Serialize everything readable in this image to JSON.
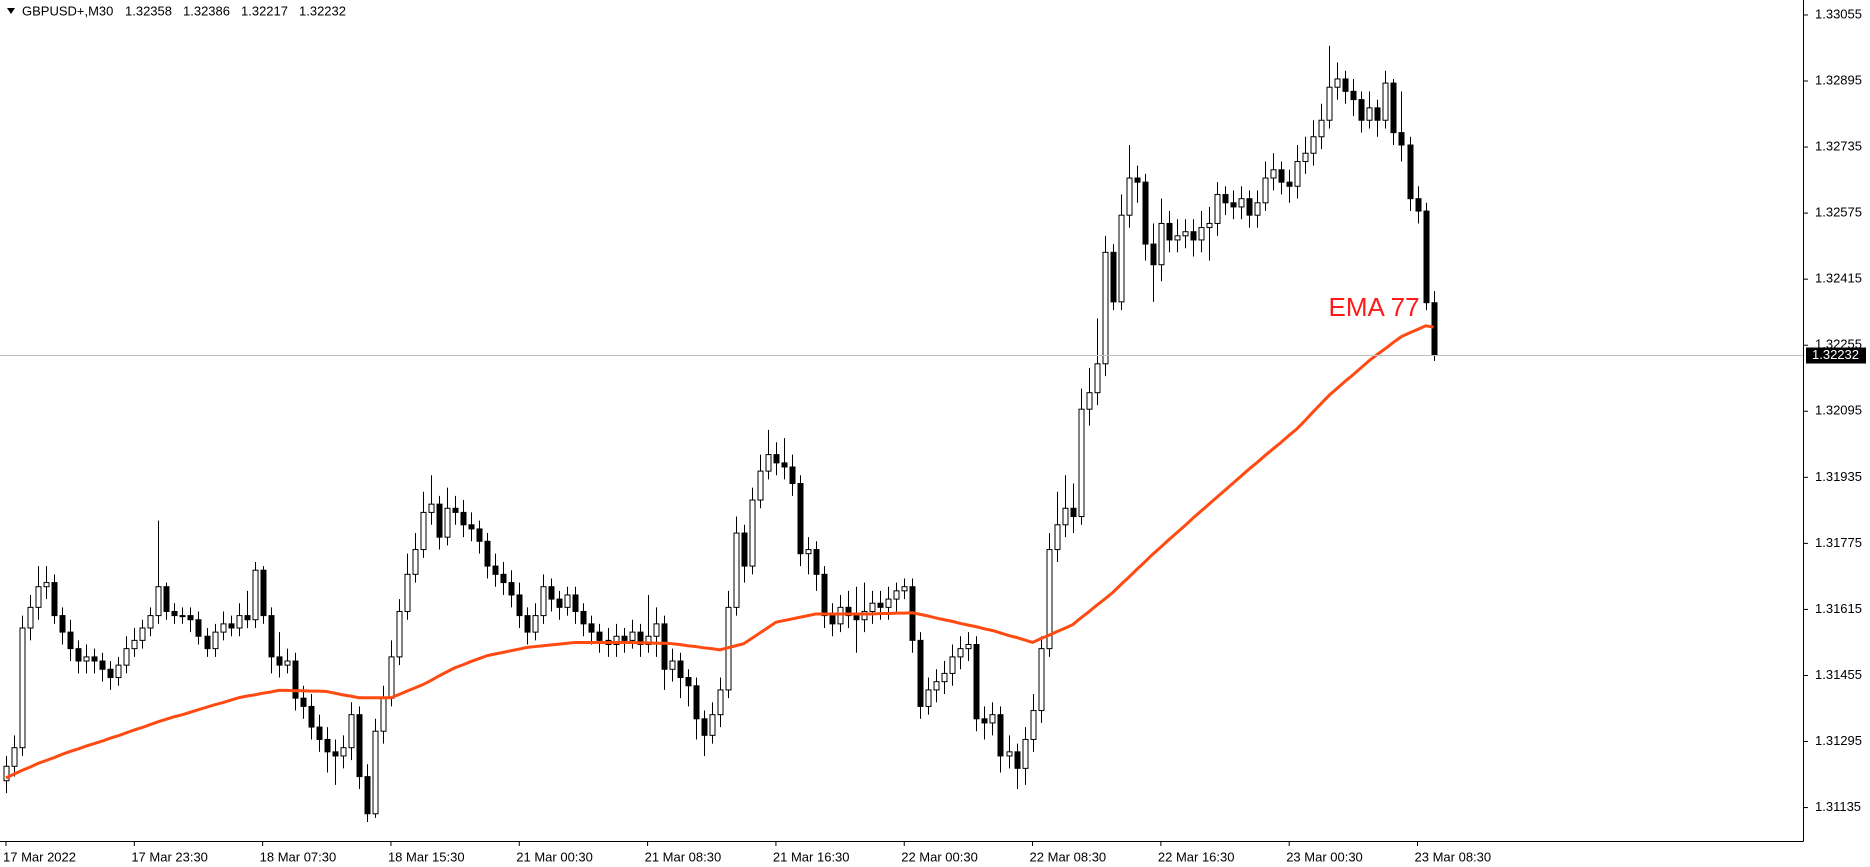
{
  "chart_data": {
    "type": "candlestick",
    "title": "GBPUSD+,M30",
    "categories": [
      "17 Mar 2022",
      null,
      null,
      null,
      null,
      null,
      null,
      null,
      null,
      null,
      null,
      null,
      null,
      null,
      null,
      null,
      "17 Mar 23:30",
      null,
      null,
      null,
      null,
      null,
      null,
      null,
      null,
      null,
      null,
      null,
      null,
      null,
      null,
      null,
      "18 Mar 07:30",
      null,
      null,
      null,
      null,
      null,
      null,
      null,
      null,
      null,
      null,
      null,
      null,
      null,
      null,
      null,
      "18 Mar 15:30",
      null,
      null,
      null,
      null,
      null,
      null,
      null,
      null,
      null,
      null,
      null,
      null,
      null,
      null,
      null,
      "21 Mar 00:30",
      null,
      null,
      null,
      null,
      null,
      null,
      null,
      null,
      null,
      null,
      null,
      null,
      null,
      null,
      null,
      "21 Mar 08:30",
      null,
      null,
      null,
      null,
      null,
      null,
      null,
      null,
      null,
      null,
      null,
      null,
      null,
      null,
      null,
      "21 Mar 16:30",
      null,
      null,
      null,
      null,
      null,
      null,
      null,
      null,
      null,
      null,
      null,
      null,
      null,
      null,
      null,
      "22 Mar 00:30",
      null,
      null,
      null,
      null,
      null,
      null,
      null,
      null,
      null,
      null,
      null,
      null,
      null,
      null,
      null,
      "22 Mar 08:30",
      null,
      null,
      null,
      null,
      null,
      null,
      null,
      null,
      null,
      null,
      null,
      null,
      null,
      null,
      null,
      "22 Mar 16:30",
      null,
      null,
      null,
      null,
      null,
      null,
      null,
      null,
      null,
      null,
      null,
      null,
      null,
      null,
      null,
      "23 Mar 00:30",
      null,
      null,
      null,
      null,
      null,
      null,
      null,
      null,
      null,
      null,
      null,
      null,
      null,
      null,
      null,
      "23 Mar 08:30",
      null,
      null
    ],
    "ohlc": {
      "open": [
        1.312,
        1.31235,
        1.3128,
        1.3157,
        1.3162,
        1.3167,
        1.3168,
        1.316,
        1.3156,
        1.3152,
        1.3149,
        1.315,
        1.3149,
        1.3147,
        1.3145,
        1.3148,
        1.3152,
        1.3154,
        1.3157,
        1.316,
        1.3167,
        1.3161,
        1.316,
        1.316,
        1.3159,
        1.3155,
        1.3152,
        1.3156,
        1.3158,
        1.3157,
        1.316,
        1.3159,
        1.3171,
        1.316,
        1.315,
        1.3148,
        1.3149,
        1.314,
        1.3138,
        1.3133,
        1.313,
        1.3127,
        1.3126,
        1.3128,
        1.3136,
        1.3121,
        1.3112,
        1.3132,
        1.314,
        1.315,
        1.3161,
        1.317,
        1.3176,
        1.3185,
        1.3187,
        1.3179,
        1.3186,
        1.3185,
        1.3182,
        1.3181,
        1.3178,
        1.3172,
        1.317,
        1.3168,
        1.3165,
        1.316,
        1.3156,
        1.316,
        1.3167,
        1.3164,
        1.3162,
        1.3165,
        1.3161,
        1.3158,
        1.3156,
        1.3154,
        1.3153,
        1.3155,
        1.3154,
        1.3156,
        1.3153,
        1.3155,
        1.3158,
        1.3147,
        1.3149,
        1.3145,
        1.3143,
        1.3135,
        1.3131,
        1.3136,
        1.3142,
        1.3162,
        1.318,
        1.3172,
        1.3188,
        1.3195,
        1.3199,
        1.3197,
        1.3196,
        1.3192,
        1.3175,
        1.3176,
        1.317,
        1.316,
        1.3158,
        1.3162,
        1.316,
        1.3159,
        1.3161,
        1.3163,
        1.3162,
        1.3164,
        1.3166,
        1.3167,
        1.3154,
        1.3138,
        1.3142,
        1.3144,
        1.3146,
        1.315,
        1.3152,
        1.3153,
        1.3135,
        1.3134,
        1.3136,
        1.3126,
        1.3127,
        1.3123,
        1.313,
        1.3137,
        1.3152,
        1.3176,
        1.3182,
        1.3186,
        1.3184,
        1.321,
        1.3214,
        1.3221,
        1.3248,
        1.3236,
        1.3257,
        1.3266,
        1.3265,
        1.325,
        1.3245,
        1.3255,
        1.3251,
        1.3252,
        1.3253,
        1.3251,
        1.3254,
        1.3255,
        1.3262,
        1.326,
        1.3259,
        1.3261,
        1.3257,
        1.326,
        1.3266,
        1.3268,
        1.3265,
        1.3264,
        1.327,
        1.3272,
        1.3276,
        1.328,
        1.3288,
        1.329,
        1.3287,
        1.3285,
        1.328,
        1.3283,
        1.328,
        1.3289,
        1.3277,
        1.3274,
        1.3261,
        1.3258,
        1.32358
      ],
      "high": [
        1.3126,
        1.3131,
        1.316,
        1.3165,
        1.3172,
        1.3172,
        1.317,
        1.3162,
        1.3159,
        1.3154,
        1.3153,
        1.3152,
        1.3151,
        1.3149,
        1.315,
        1.3155,
        1.3157,
        1.3159,
        1.3162,
        1.3183,
        1.3168,
        1.3163,
        1.3162,
        1.3162,
        1.3161,
        1.3157,
        1.3158,
        1.3161,
        1.316,
        1.3163,
        1.3166,
        1.3173,
        1.3172,
        1.3162,
        1.3156,
        1.3152,
        1.3151,
        1.3143,
        1.3141,
        1.3136,
        1.3133,
        1.313,
        1.3131,
        1.3139,
        1.3138,
        1.3124,
        1.3135,
        1.3143,
        1.3154,
        1.3164,
        1.3175,
        1.318,
        1.319,
        1.3194,
        1.3189,
        1.3191,
        1.3189,
        1.3188,
        1.3185,
        1.3183,
        1.318,
        1.3175,
        1.3173,
        1.3171,
        1.3168,
        1.3162,
        1.3163,
        1.317,
        1.3169,
        1.3166,
        1.3167,
        1.3167,
        1.3163,
        1.316,
        1.3158,
        1.3157,
        1.3158,
        1.3157,
        1.3159,
        1.3158,
        1.3165,
        1.3162,
        1.316,
        1.3152,
        1.3151,
        1.3147,
        1.3145,
        1.3137,
        1.3139,
        1.3145,
        1.3166,
        1.3184,
        1.3182,
        1.3191,
        1.3199,
        1.3205,
        1.3202,
        1.3203,
        1.3199,
        1.3194,
        1.3179,
        1.3178,
        1.3172,
        1.3163,
        1.3165,
        1.3166,
        1.3167,
        1.3168,
        1.3166,
        1.3166,
        1.3167,
        1.3168,
        1.3169,
        1.3169,
        1.3156,
        1.3145,
        1.3147,
        1.3149,
        1.3153,
        1.3155,
        1.3156,
        1.3155,
        1.3138,
        1.3139,
        1.3138,
        1.3131,
        1.3129,
        1.3133,
        1.3141,
        1.3155,
        1.318,
        1.319,
        1.3194,
        1.3192,
        1.3215,
        1.322,
        1.3232,
        1.3252,
        1.325,
        1.3262,
        1.3274,
        1.3269,
        1.3267,
        1.3255,
        1.3261,
        1.3258,
        1.3256,
        1.3256,
        1.3256,
        1.3258,
        1.3259,
        1.3265,
        1.3264,
        1.3263,
        1.3264,
        1.3263,
        1.3263,
        1.327,
        1.3272,
        1.327,
        1.3268,
        1.3274,
        1.3276,
        1.328,
        1.3284,
        1.3298,
        1.3294,
        1.3292,
        1.329,
        1.3287,
        1.3287,
        1.3285,
        1.3292,
        1.329,
        1.3287,
        1.3276,
        1.3264,
        1.326,
        1.32386
      ],
      "low": [
        1.3117,
        1.3121,
        1.3126,
        1.3154,
        1.3159,
        1.3164,
        1.3158,
        1.3153,
        1.3149,
        1.3146,
        1.3146,
        1.3146,
        1.3144,
        1.3142,
        1.3143,
        1.3146,
        1.315,
        1.3152,
        1.3155,
        1.3158,
        1.3159,
        1.3158,
        1.3158,
        1.3156,
        1.3153,
        1.315,
        1.315,
        1.3154,
        1.3155,
        1.3155,
        1.3157,
        1.3157,
        1.3158,
        1.3146,
        1.3145,
        1.3146,
        1.3137,
        1.3135,
        1.313,
        1.3127,
        1.3122,
        1.3119,
        1.3123,
        1.3125,
        1.3118,
        1.311,
        1.3111,
        1.3129,
        1.3138,
        1.3148,
        1.3159,
        1.3168,
        1.3174,
        1.3182,
        1.3176,
        1.3177,
        1.3182,
        1.3179,
        1.3178,
        1.3175,
        1.3169,
        1.3167,
        1.3165,
        1.3162,
        1.3157,
        1.3153,
        1.3154,
        1.3158,
        1.3161,
        1.3159,
        1.316,
        1.3158,
        1.3155,
        1.3153,
        1.3151,
        1.315,
        1.315,
        1.3151,
        1.3152,
        1.315,
        1.3151,
        1.315,
        1.3142,
        1.3144,
        1.314,
        1.3138,
        1.313,
        1.3126,
        1.3129,
        1.3133,
        1.314,
        1.316,
        1.3168,
        1.317,
        1.3186,
        1.3193,
        1.3194,
        1.3193,
        1.3189,
        1.3172,
        1.317,
        1.3166,
        1.3157,
        1.3155,
        1.3156,
        1.3157,
        1.3151,
        1.3156,
        1.3158,
        1.3159,
        1.3159,
        1.3161,
        1.3164,
        1.3151,
        1.3135,
        1.3136,
        1.3139,
        1.3141,
        1.3143,
        1.3147,
        1.3149,
        1.3132,
        1.313,
        1.3131,
        1.3122,
        1.3123,
        1.3118,
        1.3119,
        1.3127,
        1.3134,
        1.315,
        1.3173,
        1.3179,
        1.318,
        1.3182,
        1.3206,
        1.3211,
        1.3218,
        1.3234,
        1.3234,
        1.3254,
        1.326,
        1.3246,
        1.3236,
        1.3241,
        1.3248,
        1.3248,
        1.3249,
        1.3247,
        1.3248,
        1.3246,
        1.3252,
        1.3257,
        1.3256,
        1.3256,
        1.3254,
        1.3254,
        1.3258,
        1.3263,
        1.3262,
        1.326,
        1.3261,
        1.3267,
        1.3269,
        1.3273,
        1.3278,
        1.3285,
        1.3284,
        1.3281,
        1.3277,
        1.3278,
        1.3276,
        1.3278,
        1.3274,
        1.327,
        1.3258,
        1.3255,
        1.3234,
        1.32217
      ],
      "close": [
        1.31235,
        1.3128,
        1.3157,
        1.3162,
        1.3167,
        1.3168,
        1.316,
        1.3156,
        1.3152,
        1.3149,
        1.315,
        1.3149,
        1.3147,
        1.3145,
        1.3148,
        1.3152,
        1.3154,
        1.3157,
        1.316,
        1.3167,
        1.3161,
        1.316,
        1.316,
        1.3159,
        1.3155,
        1.3152,
        1.3156,
        1.3158,
        1.3157,
        1.316,
        1.3159,
        1.3171,
        1.316,
        1.315,
        1.3148,
        1.3149,
        1.314,
        1.3138,
        1.3133,
        1.313,
        1.3127,
        1.3126,
        1.3128,
        1.3136,
        1.3121,
        1.3112,
        1.3132,
        1.314,
        1.315,
        1.3161,
        1.317,
        1.3176,
        1.3185,
        1.3187,
        1.3179,
        1.3186,
        1.3185,
        1.3182,
        1.3181,
        1.3178,
        1.3172,
        1.317,
        1.3168,
        1.3165,
        1.316,
        1.3156,
        1.316,
        1.3167,
        1.3164,
        1.3162,
        1.3165,
        1.3161,
        1.3158,
        1.3156,
        1.3154,
        1.3153,
        1.3155,
        1.3154,
        1.3156,
        1.3153,
        1.3155,
        1.3158,
        1.3147,
        1.3149,
        1.3145,
        1.3143,
        1.3135,
        1.3131,
        1.3136,
        1.3142,
        1.3162,
        1.318,
        1.3172,
        1.3188,
        1.3195,
        1.3199,
        1.3197,
        1.3196,
        1.3192,
        1.3175,
        1.3176,
        1.317,
        1.316,
        1.3158,
        1.3162,
        1.316,
        1.3159,
        1.3161,
        1.3163,
        1.3162,
        1.3164,
        1.3166,
        1.3167,
        1.3154,
        1.3138,
        1.3142,
        1.3144,
        1.3146,
        1.315,
        1.3152,
        1.3153,
        1.3135,
        1.3134,
        1.3136,
        1.3126,
        1.3127,
        1.3123,
        1.313,
        1.3137,
        1.3152,
        1.3176,
        1.3182,
        1.3186,
        1.3184,
        1.321,
        1.3214,
        1.3221,
        1.3248,
        1.3236,
        1.3257,
        1.3266,
        1.3265,
        1.325,
        1.3245,
        1.3255,
        1.3251,
        1.3252,
        1.3253,
        1.3251,
        1.3254,
        1.3255,
        1.3262,
        1.326,
        1.3259,
        1.3261,
        1.3257,
        1.326,
        1.3266,
        1.3268,
        1.3265,
        1.3264,
        1.327,
        1.3272,
        1.3276,
        1.328,
        1.3288,
        1.329,
        1.3287,
        1.3285,
        1.328,
        1.3283,
        1.328,
        1.3289,
        1.3277,
        1.3274,
        1.3261,
        1.3258,
        1.32358,
        1.32232
      ]
    },
    "series": [
      {
        "name": "EMA 77",
        "color": "#ff4a12",
        "values": [
          1.31207,
          1.31216,
          1.31225,
          1.31233,
          1.31242,
          1.31249,
          1.31256,
          1.31264,
          1.31271,
          1.31277,
          1.31284,
          1.3129,
          1.31296,
          1.31303,
          1.31309,
          1.31316,
          1.31323,
          1.31329,
          1.31336,
          1.31343,
          1.31349,
          1.31355,
          1.3136,
          1.31366,
          1.31372,
          1.31378,
          1.31384,
          1.31389,
          1.31395,
          1.31401,
          1.31405,
          1.31408,
          1.31412,
          1.31415,
          1.31419,
          1.31419,
          1.31418,
          1.31418,
          1.31417,
          1.31417,
          1.31416,
          1.31412,
          1.31408,
          1.31405,
          1.31401,
          1.31401,
          1.31401,
          1.31401,
          1.31401,
          1.31409,
          1.31417,
          1.31425,
          1.31433,
          1.31443,
          1.31454,
          1.31464,
          1.31474,
          1.31481,
          1.31489,
          1.31496,
          1.31503,
          1.31507,
          1.31511,
          1.31515,
          1.31519,
          1.31523,
          1.31525,
          1.31527,
          1.31529,
          1.31531,
          1.31533,
          1.31535,
          1.31535,
          1.31535,
          1.31535,
          1.31535,
          1.31535,
          1.31535,
          1.31535,
          1.31534,
          1.31534,
          1.31533,
          1.31533,
          1.31532,
          1.3153,
          1.31527,
          1.31525,
          1.31522,
          1.3152,
          1.31517,
          1.31522,
          1.31527,
          1.31532,
          1.31545,
          1.31558,
          1.31571,
          1.31584,
          1.31588,
          1.31592,
          1.31596,
          1.316,
          1.31604,
          1.31604,
          1.31604,
          1.31604,
          1.31604,
          1.31604,
          1.31604,
          1.31604,
          1.31605,
          1.31605,
          1.31606,
          1.31606,
          1.31607,
          1.31603,
          1.31599,
          1.31594,
          1.3159,
          1.31586,
          1.31581,
          1.31577,
          1.31573,
          1.31568,
          1.31564,
          1.31558,
          1.31552,
          1.31547,
          1.31541,
          1.31535,
          1.31544,
          1.31552,
          1.31561,
          1.31569,
          1.31578,
          1.31594,
          1.31609,
          1.31625,
          1.3164,
          1.31656,
          1.31675,
          1.31693,
          1.31712,
          1.3173,
          1.31749,
          1.31766,
          1.31784,
          1.31801,
          1.31818,
          1.31836,
          1.31853,
          1.3187,
          1.31887,
          1.31904,
          1.31921,
          1.31938,
          1.31955,
          1.31971,
          1.31988,
          1.32004,
          1.3202,
          1.32037,
          1.32053,
          1.32073,
          1.32094,
          1.32114,
          1.32134,
          1.32151,
          1.32168,
          1.32184,
          1.32201,
          1.32218,
          1.32233,
          1.32247,
          1.32262,
          1.32276,
          1.32285,
          1.32293,
          1.32302,
          1.32299
        ]
      }
    ],
    "bull_color": "#ffffff",
    "bear_color": "#000000",
    "ylim": [
      1.31054,
      1.33084
    ],
    "yticks": [
      1.33055,
      1.32895,
      1.32735,
      1.32575,
      1.32415,
      1.32255,
      1.32095,
      1.31935,
      1.31775,
      1.31615,
      1.31455,
      1.31295,
      1.31135
    ],
    "grid": false
  }
}
